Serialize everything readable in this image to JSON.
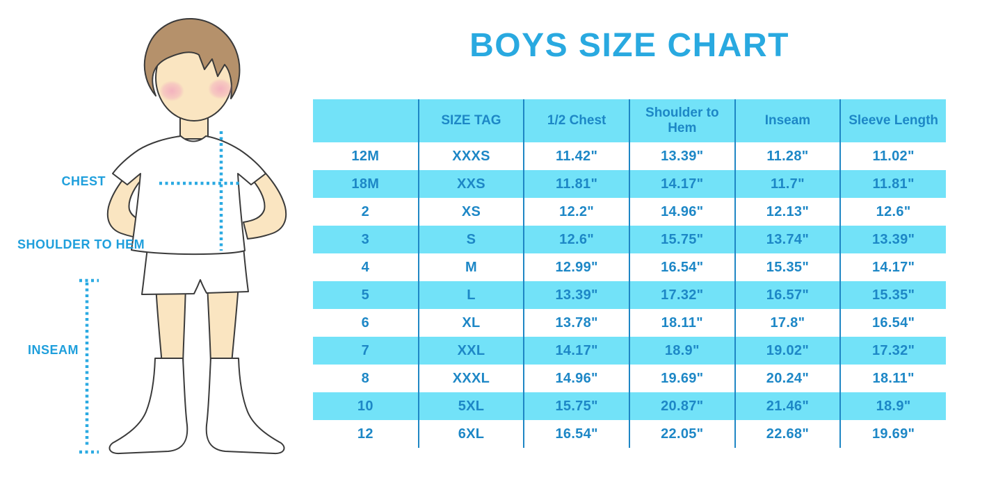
{
  "title": "BOYS SIZE CHART",
  "measurement_labels": {
    "chest": "CHEST",
    "shoulder_to_hem": "SHOULDER TO HEM",
    "inseam": "INSEAM"
  },
  "chart_data": {
    "type": "table",
    "columns": [
      "",
      "SIZE TAG",
      "1/2 Chest",
      "Shoulder to Hem",
      "Inseam",
      "Sleeve Length"
    ],
    "rows": [
      [
        "12M",
        "XXXS",
        "11.42\"",
        "13.39\"",
        "11.28\"",
        "11.02\""
      ],
      [
        "18M",
        "XXS",
        "11.81\"",
        "14.17\"",
        "11.7\"",
        "11.81\""
      ],
      [
        "2",
        "XS",
        "12.2\"",
        "14.96\"",
        "12.13\"",
        "12.6\""
      ],
      [
        "3",
        "S",
        "12.6\"",
        "15.75\"",
        "13.74\"",
        "13.39\""
      ],
      [
        "4",
        "M",
        "12.99\"",
        "16.54\"",
        "15.35\"",
        "14.17\""
      ],
      [
        "5",
        "L",
        "13.39\"",
        "17.32\"",
        "16.57\"",
        "15.35\""
      ],
      [
        "6",
        "XL",
        "13.78\"",
        "18.11\"",
        "17.8\"",
        "16.54\""
      ],
      [
        "7",
        "XXL",
        "14.17\"",
        "18.9\"",
        "19.02\"",
        "17.32\""
      ],
      [
        "8",
        "XXXL",
        "14.96\"",
        "19.69\"",
        "20.24\"",
        "18.11\""
      ],
      [
        "10",
        "5XL",
        "15.75\"",
        "20.87\"",
        "21.46\"",
        "18.9\""
      ],
      [
        "12",
        "6XL",
        "16.54\"",
        "22.05\"",
        "22.68\"",
        "19.69\""
      ]
    ]
  },
  "colors": {
    "title_blue": "#29a9e0",
    "label_blue": "#1f9fdc",
    "table_text_blue": "#1d87c6",
    "row_cyan": "#72e2f8",
    "grid_line_blue": "#1e86c4",
    "dotted_line_blue": "#2baae2",
    "skin": "#fae5c1",
    "hair_brown": "#b5916b",
    "cheek_pink": "#f2a9be",
    "outline": "#3a3a3a"
  }
}
